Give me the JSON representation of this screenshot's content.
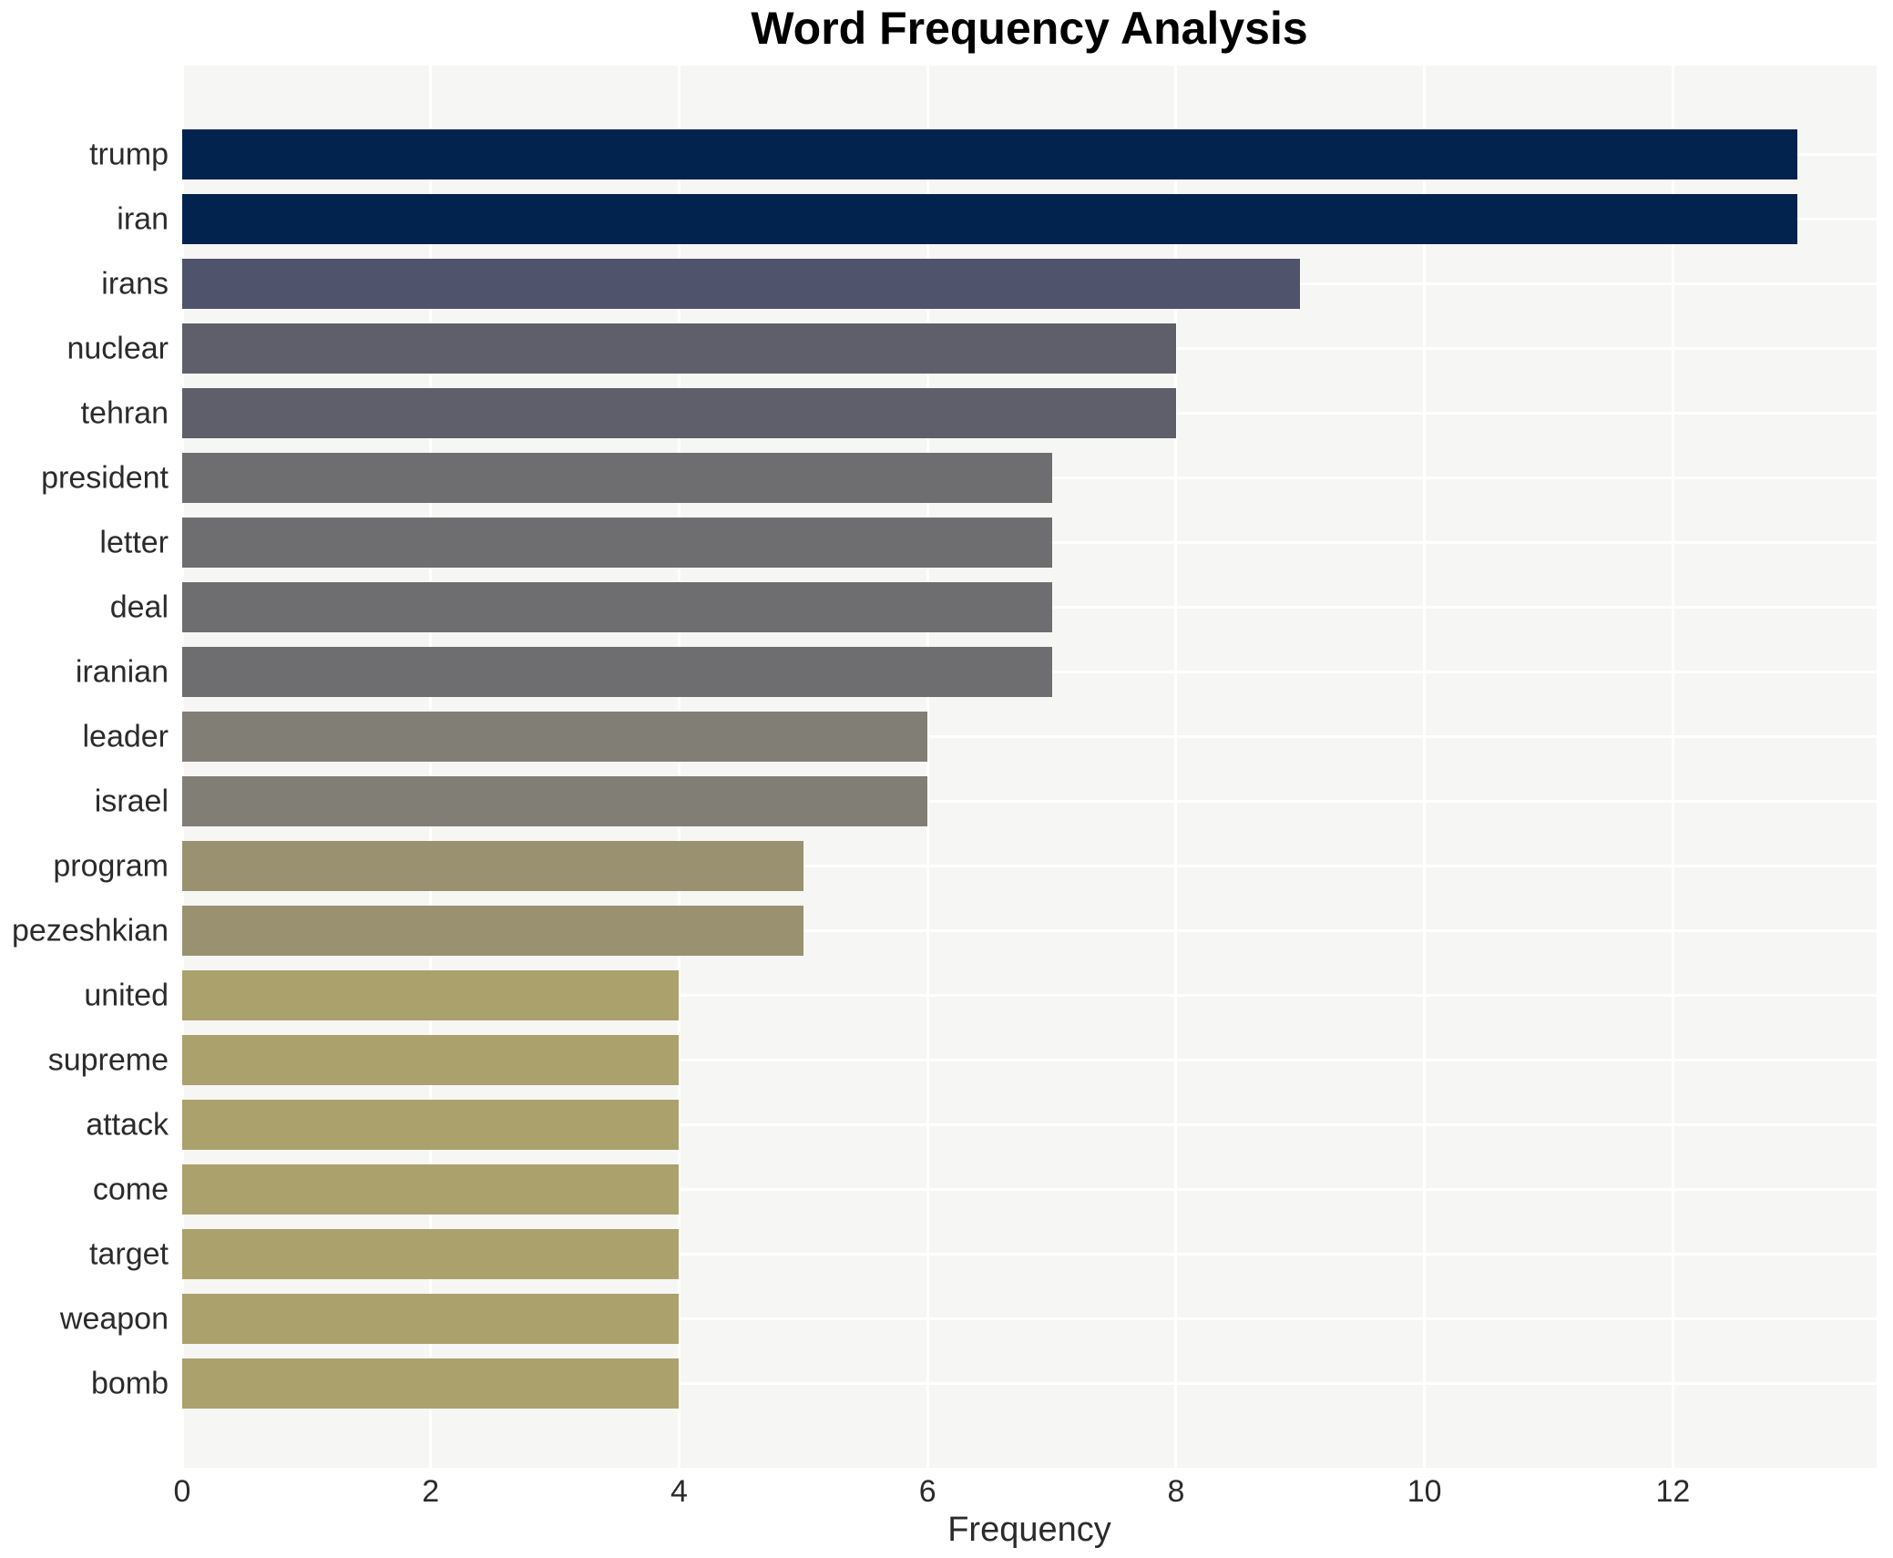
{
  "title": "Word Frequency Analysis",
  "chart_data": {
    "type": "bar",
    "orientation": "horizontal",
    "title": "Word Frequency Analysis",
    "xlabel": "Frequency",
    "ylabel": "",
    "categories": [
      "trump",
      "iran",
      "irans",
      "nuclear",
      "tehran",
      "president",
      "letter",
      "deal",
      "iranian",
      "leader",
      "israel",
      "program",
      "pezeshkian",
      "united",
      "supreme",
      "attack",
      "come",
      "target",
      "weapon",
      "bomb"
    ],
    "values": [
      13,
      13,
      9,
      8,
      8,
      7,
      7,
      7,
      7,
      6,
      6,
      5,
      5,
      4,
      4,
      4,
      4,
      4,
      4,
      4
    ],
    "bar_colors": [
      "#02234e",
      "#02234e",
      "#4f536b",
      "#5e5f6b",
      "#5e5f6b",
      "#6e6e70",
      "#6e6e70",
      "#6e6e70",
      "#6e6e70",
      "#817e76",
      "#817e76",
      "#999170",
      "#999170",
      "#aba16c",
      "#aba16c",
      "#aba16c",
      "#aba16c",
      "#aba16c",
      "#aba16c",
      "#aba16c"
    ],
    "xlim": [
      0,
      13.64
    ],
    "xticks": [
      0,
      2,
      4,
      6,
      8,
      10,
      12
    ],
    "xtick_labels": [
      "0",
      "2",
      "4",
      "6",
      "8",
      "10",
      "12"
    ],
    "grid": true,
    "legend": false,
    "colors": {
      "plot_background": "#f6f6f4",
      "gridline": "#ffffff",
      "text": "#2b2b2b",
      "title_text": "#000000",
      "page_background": "#ffffff"
    }
  }
}
